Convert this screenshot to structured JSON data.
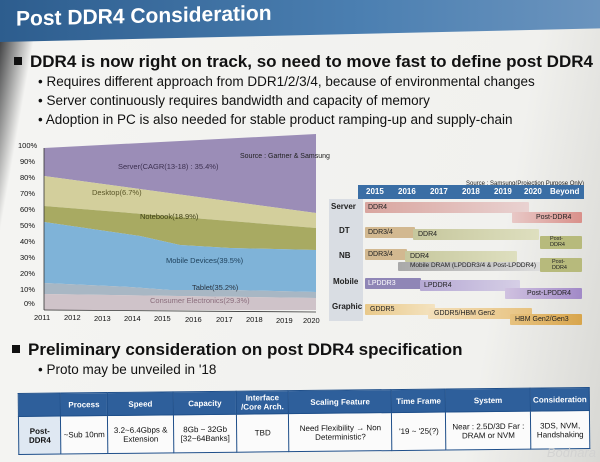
{
  "title": "Post DDR4 Consideration",
  "section1": {
    "heading": "DDR4 is now right on track, so need to move fast to define post DDR4",
    "bullets": [
      "Requires different approach from DDR1/2/3/4, because of environmental changes",
      "Server continuously requires bandwidth and capacity of memory",
      "Adoption in PC is also needed for stable product ramping-up and supply-chain"
    ]
  },
  "area_chart": {
    "source": "Source : Gartner & Samsung",
    "y_ticks": [
      "100%",
      "90%",
      "80%",
      "70%",
      "60%",
      "50%",
      "40%",
      "30%",
      "20%",
      "10%",
      "0%"
    ],
    "x_ticks": [
      "2011",
      "2012",
      "2013",
      "2014",
      "2015",
      "2016",
      "2017",
      "2018",
      "2019",
      "2020"
    ],
    "series_labels": [
      "Server(CAGR(13-18) : 35.4%)",
      "Desktop(6.7%)",
      "Notebook(18.9%)",
      "Mobile Devices(39.5%)",
      "Tablet(35.2%)",
      "Consumer Electronics(29.3%)"
    ],
    "colors": [
      "#9b8db7",
      "#d3cf9c",
      "#a8aa62",
      "#7fb3d8",
      "#a8b7c4",
      "#cfc3c9"
    ]
  },
  "roadmap": {
    "source": "Source : Samsung(Projection Purpose Only)",
    "years": [
      "2015",
      "2016",
      "2017",
      "2018",
      "2019",
      "2020",
      "Beyond"
    ],
    "rows": [
      "Server",
      "DT",
      "NB",
      "Mobile",
      "Graphic"
    ],
    "labels": {
      "server_ddr4": "DDR4",
      "server_post": "Post-DDR4",
      "dt_ddr34": "DDR3/4",
      "dt_ddr4": "DDR4",
      "dt_post": "Post-DDR4",
      "nb_ddr34": "DDR3/4",
      "nb_ddr4": "DDR4",
      "nb_mobile": "Mobile DRAM (LPDDR3/4 & Post-LPDDR4)",
      "nb_post": "Post-DDR4",
      "mob_lp3": "LPDDR3",
      "mob_lp4": "LPDDR4",
      "mob_post": "Post-LPDDR4",
      "gr_gddr5": "GDDR5",
      "gr_hbm2": "GDDR5/HBM Gen2",
      "gr_hbm3": "HBM Gen2/Gen3"
    }
  },
  "section2": {
    "heading": "Preliminary consideration on post DDR4 specification",
    "bullet": "Proto may be unveiled in '18"
  },
  "table": {
    "headers": [
      "",
      "Process",
      "Speed",
      "Capacity",
      "Interface /Core Arch.",
      "Scaling Feature",
      "Time Frame",
      "System",
      "Consideration"
    ],
    "row_header": "Post-DDR4",
    "cells": [
      "~Sub 10nm",
      "3.2~6.4Gbps & Extension",
      "8Gb ~ 32Gb [32~64Banks]",
      "TBD",
      "Need Flexibility → Non Deterministic?",
      "'19 ~ '25(?)",
      "Near : 2.5D/3D Far : DRAM or NVM",
      "3DS, NVM, Handshaking"
    ]
  },
  "watermark": "Bodnara"
}
